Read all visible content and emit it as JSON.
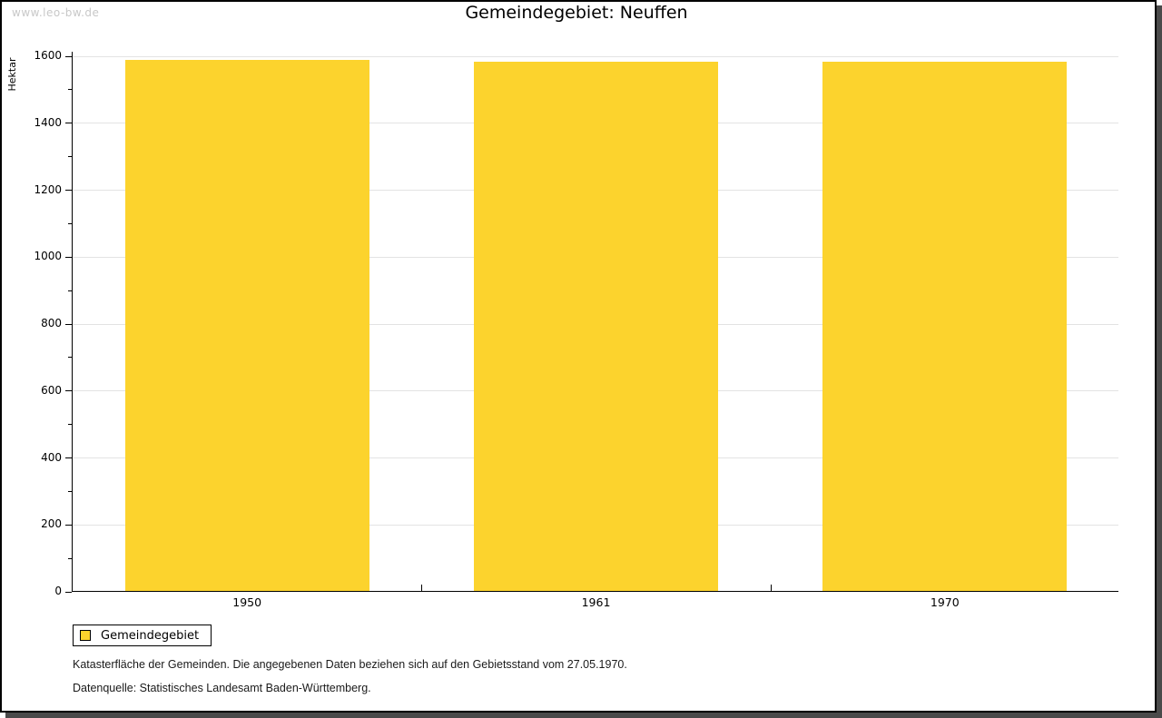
{
  "watermark": "www.leo-bw.de",
  "header": {
    "title": "Gemeindegebiet: Neuffen"
  },
  "chart_data": {
    "type": "bar",
    "title": "Gemeindegebiet: Neuffen",
    "categories": [
      "1950",
      "1961",
      "1970"
    ],
    "series": [
      {
        "name": "Gemeindegebiet",
        "values": [
          1587,
          1580,
          1581
        ]
      }
    ],
    "xlabel": "",
    "ylabel": "Hektar",
    "ylim": [
      0,
      1600
    ],
    "ytick_step": 200,
    "ytick_minor_step": 100,
    "yticks": [
      0,
      200,
      400,
      600,
      800,
      1000,
      1200,
      1400,
      1600
    ],
    "grid": true,
    "legend_position": "bottom-left",
    "bar_color": "#fcd32d"
  },
  "legend": {
    "items": [
      {
        "label": "Gemeindegebiet",
        "color": "#fcd32d"
      }
    ]
  },
  "footer": {
    "line1": "Katasterfläche der Gemeinden. Die angegebenen Daten beziehen sich auf den Gebietsstand vom 27.05.1970.",
    "line2": "Datenquelle: Statistisches Landesamt Baden-Württemberg."
  },
  "colors": {
    "bar": "#fcd32d",
    "gridline": "#e3e3e3",
    "axis": "#000000",
    "watermark": "#c8c8c8",
    "frame_shadow": "#4a4a4a",
    "background": "#ffffff"
  }
}
